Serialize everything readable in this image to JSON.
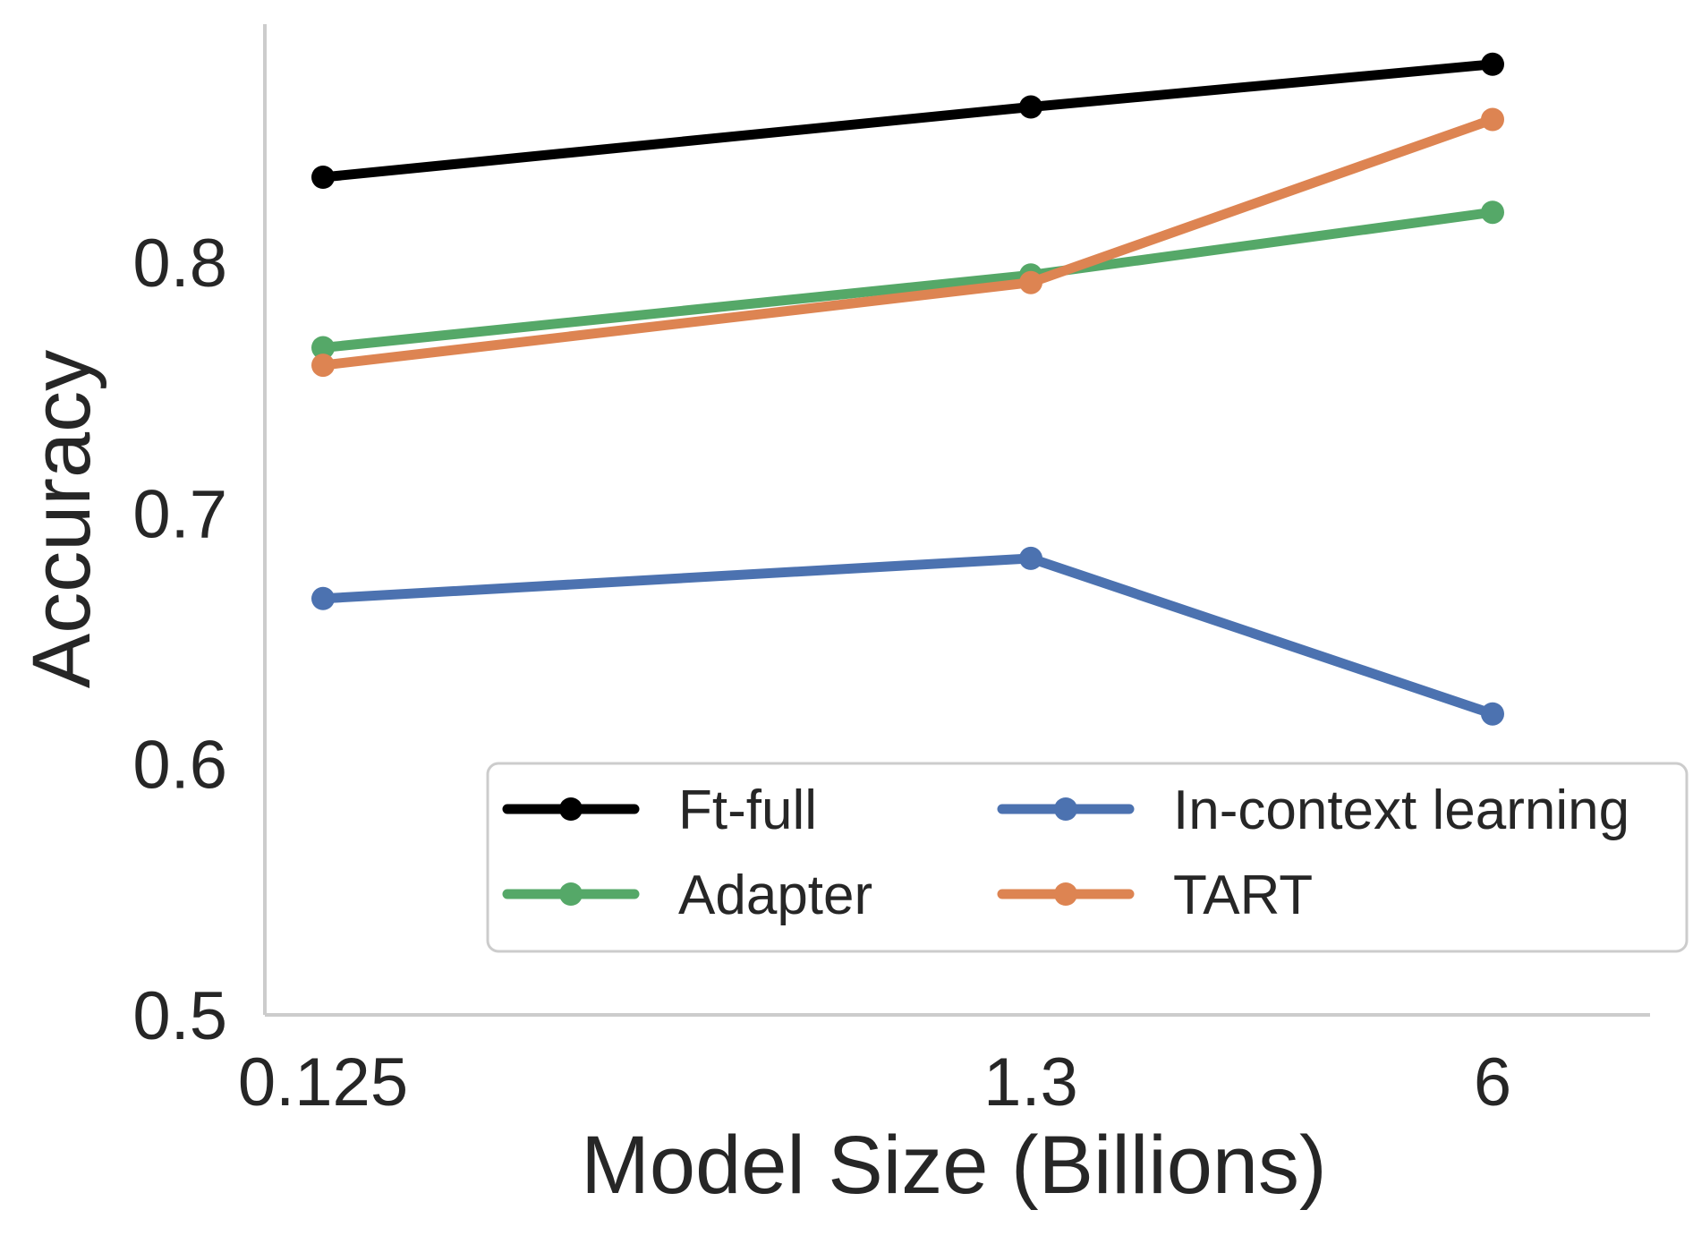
{
  "chart_data": {
    "type": "line",
    "title": "",
    "xlabel": "Model Size (Billions)",
    "ylabel": "Accuracy",
    "categories": [
      "0.125",
      "1.3",
      "6"
    ],
    "ylim": [
      0.5,
      0.895
    ],
    "yticks": [
      0.5,
      0.6,
      0.7,
      0.8
    ],
    "ytick_labels": [
      "0.5",
      "0.6",
      "0.7",
      "0.8"
    ],
    "grid": false,
    "legend_position": "lower-right",
    "legend_columns": 2,
    "series": [
      {
        "name": "Ft-full",
        "color": "#000000",
        "values": [
          0.834,
          0.862,
          0.879
        ]
      },
      {
        "name": "In-context learning",
        "color": "#4c72b0",
        "values": [
          0.666,
          0.682,
          0.62
        ]
      },
      {
        "name": "Adapter",
        "color": "#55a868",
        "values": [
          0.766,
          0.795,
          0.82
        ]
      },
      {
        "name": "TART",
        "color": "#dd8452",
        "values": [
          0.759,
          0.792,
          0.857
        ]
      }
    ]
  }
}
